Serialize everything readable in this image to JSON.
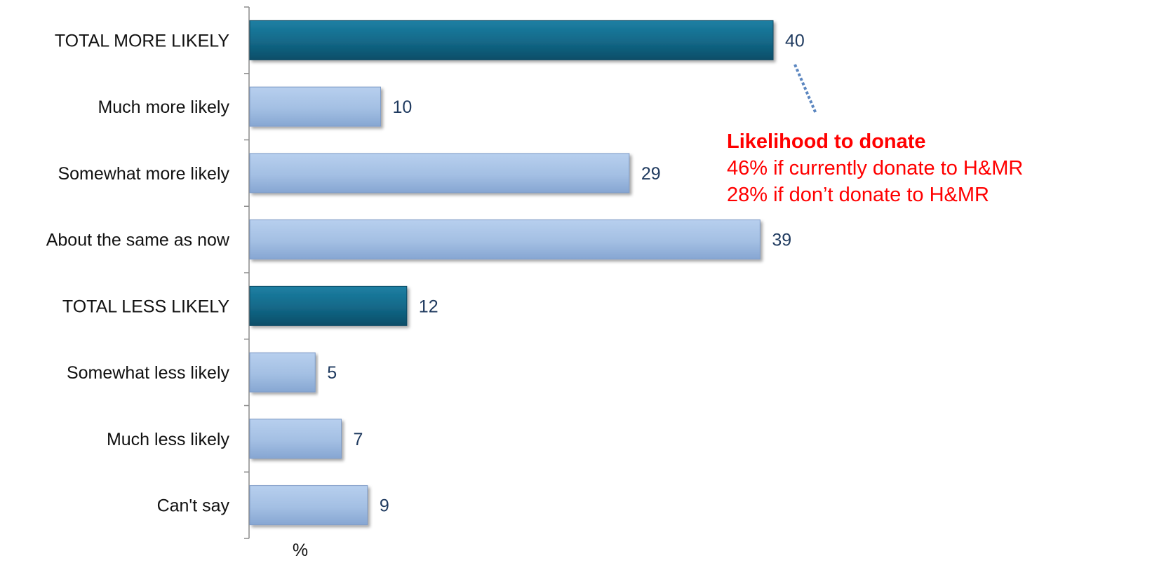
{
  "chart_data": {
    "type": "bar",
    "orientation": "horizontal",
    "categories": [
      "TOTAL MORE LIKELY",
      "Much more likely",
      "Somewhat more likely",
      "About the same as now",
      "TOTAL LESS LIKELY",
      "Somewhat less likely",
      "Much less likely",
      "Can't say"
    ],
    "values": [
      40,
      10,
      29,
      39,
      12,
      5,
      7,
      9
    ],
    "highlight": [
      true,
      false,
      false,
      false,
      true,
      false,
      false,
      false
    ],
    "xlabel": "%",
    "xlim": [
      0,
      40
    ],
    "grid": false,
    "colors": {
      "highlight": "#136a8a",
      "normal": "#a3bfe3",
      "annotation": "#ff0000",
      "value_text": "#1f3a5f"
    }
  },
  "annotation": {
    "title": "Likelihood to donate",
    "line1": "46% if currently donate to H&MR",
    "line2": "28% if don’t donate to H&MR"
  }
}
